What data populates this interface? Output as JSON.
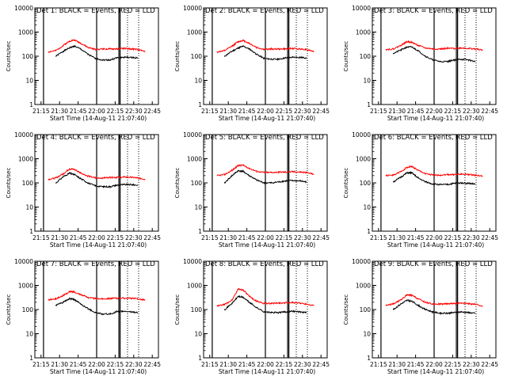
{
  "figure": {
    "xlabel": "Start Time (14-Aug-11 21:07:40)",
    "ylabel": "Counts/sec",
    "x_tick_labels": [
      "21:15",
      "21:30",
      "21:45",
      "22:00",
      "22:15",
      "22:30",
      "22:45"
    ],
    "y_tick_labels": [
      "1",
      "10",
      "100",
      "1000",
      "10000"
    ],
    "colors": {
      "events": "#000000",
      "lld": "#ff0000"
    }
  },
  "chart_data": [
    {
      "type": "line",
      "title": "Det 1: BLACK = Events, RED = LLD",
      "x": [
        "21:21",
        "21:27",
        "21:33",
        "21:38",
        "21:42",
        "21:47",
        "21:53",
        "21:59",
        "22:05",
        "22:11",
        "22:16",
        "22:22",
        "22:28",
        "22:33",
        "22:39"
      ],
      "series": [
        {
          "name": "BLACK = Events",
          "values": [
            null,
            100,
            160,
            220,
            260,
            200,
            120,
            80,
            70,
            70,
            85,
            90,
            90,
            85,
            null
          ]
        },
        {
          "name": "RED = LLD",
          "values": [
            150,
            170,
            280,
            420,
            470,
            350,
            230,
            190,
            200,
            200,
            200,
            210,
            200,
            190,
            160
          ]
        }
      ],
      "ylim": [
        1,
        10000
      ],
      "yscale": "log"
    },
    {
      "type": "line",
      "title": "Det 2: BLACK = Events, RED = LLD",
      "x": [
        "21:21",
        "21:27",
        "21:33",
        "21:38",
        "21:42",
        "21:47",
        "21:53",
        "21:59",
        "22:05",
        "22:11",
        "22:16",
        "22:22",
        "22:28",
        "22:33",
        "22:39"
      ],
      "series": [
        {
          "name": "BLACK = Events",
          "values": [
            null,
            100,
            160,
            220,
            260,
            200,
            120,
            80,
            75,
            75,
            85,
            90,
            90,
            85,
            null
          ]
        },
        {
          "name": "RED = LLD",
          "values": [
            150,
            170,
            260,
            400,
            450,
            340,
            230,
            190,
            200,
            200,
            200,
            210,
            200,
            190,
            160
          ]
        }
      ],
      "ylim": [
        1,
        10000
      ],
      "yscale": "log"
    },
    {
      "type": "line",
      "title": "Det 3: BLACK = Events, RED = LLD",
      "x": [
        "21:21",
        "21:27",
        "21:33",
        "21:38",
        "21:42",
        "21:47",
        "21:53",
        "21:59",
        "22:05",
        "22:11",
        "22:16",
        "22:22",
        "22:28",
        "22:33",
        "22:39"
      ],
      "series": [
        {
          "name": "BLACK = Events",
          "values": [
            null,
            130,
            180,
            240,
            240,
            170,
            100,
            70,
            60,
            60,
            70,
            75,
            70,
            60,
            null
          ]
        },
        {
          "name": "RED = LLD",
          "values": [
            190,
            200,
            280,
            400,
            380,
            280,
            220,
            200,
            200,
            210,
            210,
            220,
            210,
            200,
            180
          ]
        }
      ],
      "ylim": [
        1,
        10000
      ],
      "yscale": "log"
    },
    {
      "type": "line",
      "title": "Det 4: BLACK = Events, RED = LLD",
      "x": [
        "21:21",
        "21:27",
        "21:33",
        "21:38",
        "21:42",
        "21:47",
        "21:53",
        "21:59",
        "22:05",
        "22:11",
        "22:16",
        "22:22",
        "22:28",
        "22:33",
        "22:39"
      ],
      "series": [
        {
          "name": "BLACK = Events",
          "values": [
            null,
            100,
            180,
            250,
            220,
            150,
            100,
            75,
            70,
            70,
            80,
            85,
            85,
            80,
            null
          ]
        },
        {
          "name": "RED = LLD",
          "values": [
            140,
            160,
            240,
            380,
            360,
            260,
            190,
            160,
            160,
            170,
            170,
            175,
            170,
            160,
            140
          ]
        }
      ],
      "ylim": [
        1,
        10000
      ],
      "yscale": "log"
    },
    {
      "type": "line",
      "title": "Det 5: BLACK = Events, RED = LLD",
      "x": [
        "21:21",
        "21:27",
        "21:33",
        "21:38",
        "21:42",
        "21:47",
        "21:53",
        "21:59",
        "22:05",
        "22:11",
        "22:16",
        "22:22",
        "22:28",
        "22:33",
        "22:39"
      ],
      "series": [
        {
          "name": "BLACK = Events",
          "values": [
            null,
            100,
            200,
            320,
            300,
            200,
            130,
            100,
            100,
            110,
            120,
            125,
            120,
            110,
            null
          ]
        },
        {
          "name": "RED = LLD",
          "values": [
            200,
            220,
            330,
            520,
            540,
            400,
            300,
            270,
            270,
            280,
            280,
            290,
            280,
            270,
            230
          ]
        }
      ],
      "ylim": [
        1,
        10000
      ],
      "yscale": "log"
    },
    {
      "type": "line",
      "title": "Det 6: BLACK = Events, RED = LLD",
      "x": [
        "21:21",
        "21:27",
        "21:33",
        "21:38",
        "21:42",
        "21:47",
        "21:53",
        "21:59",
        "22:05",
        "22:11",
        "22:16",
        "22:22",
        "22:28",
        "22:33",
        "22:39"
      ],
      "series": [
        {
          "name": "BLACK = Events",
          "values": [
            null,
            110,
            170,
            260,
            260,
            160,
            110,
            90,
            85,
            85,
            95,
            100,
            95,
            90,
            null
          ]
        },
        {
          "name": "RED = LLD",
          "values": [
            200,
            210,
            290,
            440,
            480,
            330,
            240,
            210,
            210,
            220,
            220,
            230,
            220,
            210,
            190
          ]
        }
      ],
      "ylim": [
        1,
        10000
      ],
      "yscale": "log"
    },
    {
      "type": "line",
      "title": "Det 7: BLACK = Events, RED = LLD",
      "x": [
        "21:21",
        "21:27",
        "21:33",
        "21:38",
        "21:42",
        "21:47",
        "21:53",
        "21:59",
        "22:05",
        "22:11",
        "22:16",
        "22:22",
        "22:28",
        "22:33",
        "22:39"
      ],
      "series": [
        {
          "name": "BLACK = Events",
          "values": [
            null,
            150,
            200,
            280,
            260,
            170,
            110,
            75,
            65,
            65,
            80,
            85,
            80,
            75,
            null
          ]
        },
        {
          "name": "RED = LLD",
          "values": [
            250,
            280,
            380,
            550,
            540,
            420,
            320,
            280,
            280,
            290,
            290,
            300,
            290,
            280,
            250
          ]
        }
      ],
      "ylim": [
        1,
        10000
      ],
      "yscale": "log"
    },
    {
      "type": "line",
      "title": "Det 8: BLACK = Events, RED = LLD",
      "x": [
        "21:21",
        "21:27",
        "21:33",
        "21:38",
        "21:42",
        "21:47",
        "21:53",
        "21:59",
        "22:05",
        "22:11",
        "22:16",
        "22:22",
        "22:28",
        "22:33",
        "22:39"
      ],
      "series": [
        {
          "name": "BLACK = Events",
          "values": [
            null,
            100,
            180,
            350,
            320,
            200,
            120,
            80,
            75,
            75,
            80,
            85,
            80,
            75,
            null
          ]
        },
        {
          "name": "RED = LLD",
          "values": [
            140,
            160,
            250,
            700,
            650,
            350,
            220,
            180,
            180,
            185,
            190,
            195,
            185,
            170,
            150
          ]
        }
      ],
      "ylim": [
        1,
        10000
      ],
      "yscale": "log"
    },
    {
      "type": "line",
      "title": "Det 9: BLACK = Events, RED = LLD",
      "x": [
        "21:21",
        "21:27",
        "21:33",
        "21:38",
        "21:42",
        "21:47",
        "21:53",
        "21:59",
        "22:05",
        "22:11",
        "22:16",
        "22:22",
        "22:28",
        "22:33",
        "22:39"
      ],
      "series": [
        {
          "name": "BLACK = Events",
          "values": [
            null,
            100,
            170,
            240,
            220,
            150,
            100,
            80,
            70,
            70,
            75,
            80,
            75,
            70,
            null
          ]
        },
        {
          "name": "RED = LLD",
          "values": [
            150,
            170,
            250,
            400,
            390,
            280,
            200,
            170,
            170,
            175,
            180,
            180,
            175,
            165,
            140
          ]
        }
      ],
      "ylim": [
        1,
        10000
      ],
      "yscale": "log"
    }
  ]
}
